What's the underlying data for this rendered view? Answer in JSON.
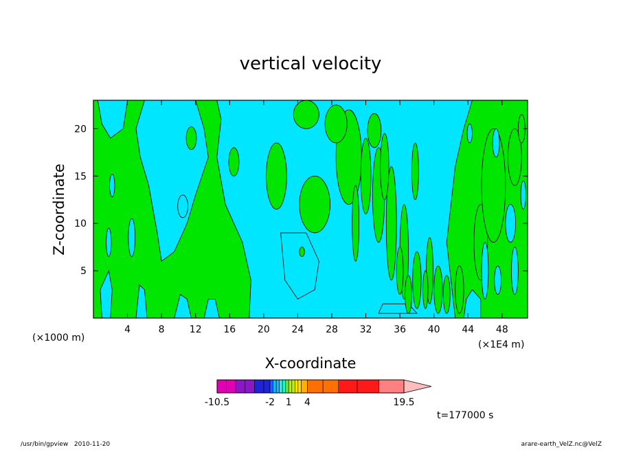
{
  "chart_data": {
    "type": "heatmap",
    "title": "vertical velocity",
    "xlabel": "X-coordinate",
    "ylabel": "Z-coordinate",
    "x_unit_left": "(×1000 m)",
    "x_unit_right": "(×1E4 m)",
    "xlim": [
      0,
      51
    ],
    "ylim": [
      0,
      23
    ],
    "xticks": [
      4,
      8,
      12,
      16,
      20,
      24,
      28,
      32,
      36,
      40,
      44,
      48
    ],
    "yticks": [
      5,
      10,
      15,
      20
    ],
    "xtick_labels": [
      "4",
      "8",
      "12",
      "16",
      "20",
      "24",
      "28",
      "32",
      "36",
      "40",
      "44",
      "48"
    ],
    "ytick_labels": [
      "5",
      "10",
      "15",
      "20"
    ],
    "levels": [
      -10.5,
      -9,
      -7.5,
      -6,
      -4.5,
      -3,
      -2,
      -1.5,
      -1,
      -0.5,
      0,
      0.5,
      1,
      1.5,
      2,
      2.5,
      3,
      4,
      6.5,
      9,
      12,
      15.5,
      19.5
    ],
    "legend_level_labels": [
      "-10.5",
      "-2",
      "1",
      "4",
      "19.5"
    ],
    "legend_labeled_values": [
      -10.5,
      -2,
      1,
      4,
      19.5
    ],
    "colorbar": {
      "colors": [
        "#e000b4",
        "#8c17c8",
        "#2024d6",
        "#1e60ff",
        "#17b8ff",
        "#2bf0d8",
        "#5ce63c",
        "#b8f000",
        "#ffe000",
        "#ffb000",
        "#ff7000",
        "#ff1a1a",
        "#ff8080",
        "#ffbcbc"
      ],
      "extend": "max",
      "placement": "bottom"
    },
    "region_colors": {
      "negative": "#00e6ff",
      "positive": "#00e600"
    },
    "grid": false,
    "time_label": "t=177000 s"
  },
  "footer": {
    "left": "/usr/bin/gpview   2010-11-20",
    "right": "arare-earth_VelZ.nc@VelZ"
  }
}
